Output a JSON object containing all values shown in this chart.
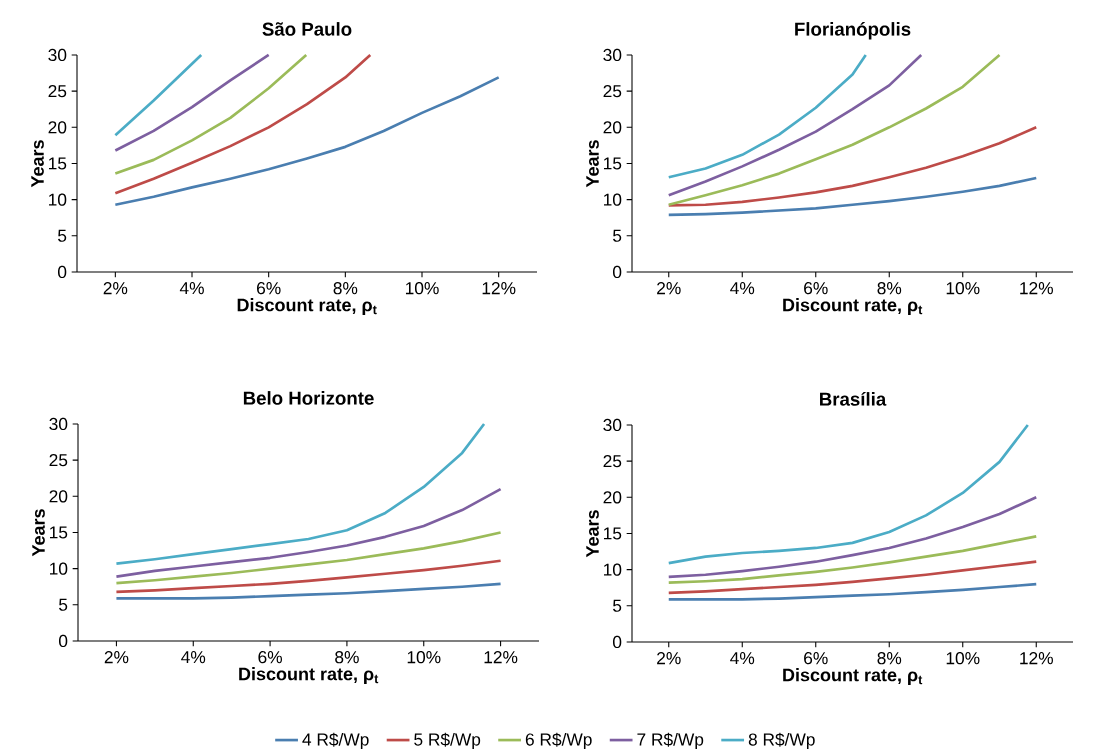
{
  "chart_data": [
    {
      "type": "line",
      "title": "São Paulo",
      "xlabel": "Discount rate, ρ$_{t}$",
      "ylabel": "Years",
      "xlim": [
        1,
        13
      ],
      "ylim": [
        0,
        30
      ],
      "xticks": [
        {
          "value": 2,
          "label": "2%"
        },
        {
          "value": 4,
          "label": "4%"
        },
        {
          "value": 6,
          "label": "6%"
        },
        {
          "value": 8,
          "label": "8%"
        },
        {
          "value": 10,
          "label": "10%"
        },
        {
          "value": 12,
          "label": "12%"
        }
      ],
      "yticks": [
        0,
        5,
        10,
        15,
        20,
        25,
        30
      ],
      "grid": false,
      "marker": "none",
      "line_style": "solid",
      "series": [
        {
          "color": "#4a7eb0",
          "x": [
            2,
            3,
            4,
            5,
            6,
            7,
            8,
            9,
            10,
            11,
            12
          ],
          "values": [
            9.3,
            10.4,
            11.7,
            12.9,
            14.2,
            15.7,
            17.3,
            19.5,
            22.0,
            24.3,
            26.9
          ]
        },
        {
          "color": "#be4b48",
          "x": [
            2,
            3,
            4,
            5,
            6,
            7,
            8,
            8.65
          ],
          "values": [
            10.9,
            12.9,
            15.1,
            17.4,
            20.0,
            23.2,
            26.9,
            30
          ]
        },
        {
          "color": "#9bbb59",
          "x": [
            2,
            3,
            4,
            5,
            6,
            6.98
          ],
          "values": [
            13.6,
            15.5,
            18.2,
            21.3,
            25.4,
            30
          ]
        },
        {
          "color": "#7d5fa0",
          "x": [
            2,
            3,
            4,
            5,
            6
          ],
          "values": [
            16.8,
            19.5,
            22.8,
            26.5,
            30
          ]
        },
        {
          "color": "#4bacc6",
          "x": [
            2,
            3,
            4.24
          ],
          "values": [
            18.9,
            23.7,
            30
          ]
        }
      ]
    },
    {
      "type": "line",
      "title": "Florianópolis",
      "xlabel": "Discount rate, ρ$_{t}$",
      "ylabel": "Years",
      "xlim": [
        1,
        13
      ],
      "ylim": [
        0,
        30
      ],
      "xticks": [
        {
          "value": 2,
          "label": "2%"
        },
        {
          "value": 4,
          "label": "4%"
        },
        {
          "value": 6,
          "label": "6%"
        },
        {
          "value": 8,
          "label": "8%"
        },
        {
          "value": 10,
          "label": "10%"
        },
        {
          "value": 12,
          "label": "12%"
        }
      ],
      "yticks": [
        0,
        5,
        10,
        15,
        20,
        25,
        30
      ],
      "grid": false,
      "marker": "none",
      "line_style": "solid",
      "series": [
        {
          "color": "#4a7eb0",
          "x": [
            2,
            3,
            4,
            5,
            6,
            7,
            8,
            9,
            10,
            11,
            12
          ],
          "values": [
            7.9,
            8.0,
            8.2,
            8.5,
            8.8,
            9.3,
            9.8,
            10.4,
            11.1,
            11.9,
            13.0
          ]
        },
        {
          "color": "#be4b48",
          "x": [
            2,
            3,
            4,
            5,
            6,
            7,
            8,
            9,
            10,
            11,
            12
          ],
          "values": [
            9.2,
            9.3,
            9.7,
            10.3,
            11.0,
            11.9,
            13.1,
            14.4,
            16.0,
            17.8,
            20.0
          ]
        },
        {
          "color": "#9bbb59",
          "x": [
            2,
            3,
            4,
            5,
            6,
            7,
            8,
            9,
            10,
            11
          ],
          "values": [
            9.3,
            10.6,
            12.0,
            13.6,
            15.6,
            17.6,
            20.0,
            22.6,
            25.6,
            30
          ]
        },
        {
          "color": "#7d5fa0",
          "x": [
            2,
            3,
            4,
            5,
            6,
            7,
            8,
            8.87
          ],
          "values": [
            10.6,
            12.5,
            14.6,
            16.9,
            19.4,
            22.5,
            25.8,
            30
          ]
        },
        {
          "color": "#4bacc6",
          "x": [
            2,
            3,
            4,
            5,
            6,
            7,
            7.36
          ],
          "values": [
            13.1,
            14.3,
            16.2,
            19.0,
            22.7,
            27.3,
            30
          ]
        }
      ]
    },
    {
      "type": "line",
      "title": "Belo Horizonte",
      "xlabel": "Discount rate, ρ$_{t}$",
      "ylabel": "Years",
      "xlim": [
        1,
        13
      ],
      "ylim": [
        0,
        30
      ],
      "xticks": [
        {
          "value": 2,
          "label": "2%"
        },
        {
          "value": 4,
          "label": "4%"
        },
        {
          "value": 6,
          "label": "6%"
        },
        {
          "value": 8,
          "label": "8%"
        },
        {
          "value": 10,
          "label": "10%"
        },
        {
          "value": 12,
          "label": "12%"
        }
      ],
      "yticks": [
        0,
        5,
        10,
        15,
        20,
        25,
        30
      ],
      "grid": false,
      "marker": "none",
      "line_style": "solid",
      "series": [
        {
          "color": "#4a7eb0",
          "x": [
            2,
            3,
            4,
            5,
            6,
            7,
            8,
            9,
            10,
            11,
            12
          ],
          "values": [
            5.9,
            5.9,
            5.9,
            6.0,
            6.2,
            6.4,
            6.6,
            6.9,
            7.2,
            7.5,
            7.9
          ]
        },
        {
          "color": "#be4b48",
          "x": [
            2,
            3,
            4,
            5,
            6,
            7,
            8,
            9,
            10,
            11,
            12
          ],
          "values": [
            6.8,
            7.0,
            7.3,
            7.6,
            7.9,
            8.3,
            8.8,
            9.3,
            9.8,
            10.4,
            11.1
          ]
        },
        {
          "color": "#9bbb59",
          "x": [
            2,
            3,
            4,
            5,
            6,
            7,
            8,
            9,
            10,
            11,
            12
          ],
          "values": [
            8.0,
            8.4,
            8.9,
            9.4,
            10.0,
            10.6,
            11.2,
            12.0,
            12.8,
            13.8,
            15.0
          ]
        },
        {
          "color": "#7d5fa0",
          "x": [
            2,
            3,
            4,
            5,
            6,
            7,
            8,
            9,
            10,
            11,
            12
          ],
          "values": [
            8.9,
            9.7,
            10.3,
            10.9,
            11.5,
            12.3,
            13.2,
            14.4,
            15.9,
            18.1,
            21.0
          ]
        },
        {
          "color": "#4bacc6",
          "x": [
            2,
            3,
            4,
            5,
            6,
            7,
            8,
            9,
            10,
            11,
            11.57
          ],
          "values": [
            10.7,
            11.3,
            12.0,
            12.7,
            13.4,
            14.1,
            15.3,
            17.7,
            21.3,
            26.0,
            30
          ]
        }
      ]
    },
    {
      "type": "line",
      "title": "Brasília",
      "xlabel": "Discount rate, ρ$_{t}$",
      "ylabel": "Years",
      "xlim": [
        1,
        13
      ],
      "ylim": [
        0,
        30
      ],
      "xticks": [
        {
          "value": 2,
          "label": "2%"
        },
        {
          "value": 4,
          "label": "4%"
        },
        {
          "value": 6,
          "label": "6%"
        },
        {
          "value": 8,
          "label": "8%"
        },
        {
          "value": 10,
          "label": "10%"
        },
        {
          "value": 12,
          "label": "12%"
        }
      ],
      "yticks": [
        0,
        5,
        10,
        15,
        20,
        25,
        30
      ],
      "grid": false,
      "marker": "none",
      "line_style": "solid",
      "legend": "bottom",
      "series": [
        {
          "name": "4 R$/Wp",
          "color": "#4a7eb0",
          "x": [
            2,
            3,
            4,
            5,
            6,
            7,
            8,
            9,
            10,
            11,
            12
          ],
          "values": [
            5.9,
            5.9,
            5.9,
            6.0,
            6.2,
            6.4,
            6.6,
            6.9,
            7.2,
            7.6,
            8.0
          ]
        },
        {
          "name": "5 R$/Wp",
          "color": "#be4b48",
          "x": [
            2,
            3,
            4,
            5,
            6,
            7,
            8,
            9,
            10,
            11,
            12
          ],
          "values": [
            6.8,
            7.0,
            7.3,
            7.6,
            7.9,
            8.3,
            8.8,
            9.3,
            9.9,
            10.5,
            11.1
          ]
        },
        {
          "name": "6 R$/Wp",
          "color": "#9bbb59",
          "x": [
            2,
            3,
            4,
            5,
            6,
            7,
            8,
            9,
            10,
            11,
            12
          ],
          "values": [
            8.2,
            8.4,
            8.7,
            9.2,
            9.7,
            10.3,
            11.0,
            11.8,
            12.6,
            13.6,
            14.6
          ]
        },
        {
          "name": "7 R$/Wp",
          "color": "#7d5fa0",
          "x": [
            2,
            3,
            4,
            5,
            6,
            7,
            8,
            9,
            10,
            11,
            12
          ],
          "values": [
            9.0,
            9.3,
            9.8,
            10.4,
            11.1,
            12.0,
            13.0,
            14.3,
            15.9,
            17.7,
            20.0
          ]
        },
        {
          "name": "8 R$/Wp",
          "color": "#4bacc6",
          "x": [
            2,
            3,
            4,
            5,
            6,
            7,
            8,
            9,
            10,
            11,
            11.77
          ],
          "values": [
            10.9,
            11.8,
            12.3,
            12.6,
            13.0,
            13.7,
            15.2,
            17.5,
            20.6,
            24.9,
            30
          ]
        }
      ]
    }
  ]
}
